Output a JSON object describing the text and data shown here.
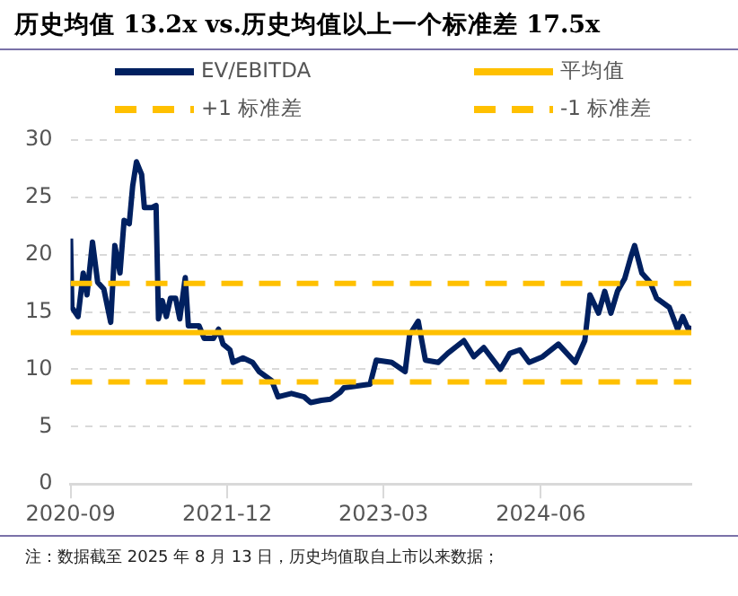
{
  "chart_data": {
    "type": "line",
    "title": "历史均值 13.2x vs.历史均值以上一个标准差 17.5x",
    "annotations": [
      "注：数据截至 2025 年 8 月 13 日，历史均值取自上市以来数据；"
    ],
    "xlim": [
      "2020-09-01",
      "2025-08-13"
    ],
    "xticks": [
      "2020-09",
      "2021-12",
      "2023-03",
      "2024-06"
    ],
    "ylim": [
      0,
      30
    ],
    "yticks": [
      0,
      5,
      10,
      15,
      20,
      25,
      30
    ],
    "grid": "y",
    "legend": "top",
    "marker": "none",
    "series": [
      {
        "name": "EV/EBITDA",
        "color": "#002060",
        "line_style": "solid",
        "x": [
          "2020-09-01",
          "2020-09-05",
          "2020-09-23",
          "2020-10-08",
          "2020-10-19",
          "2020-11-04",
          "2020-11-19",
          "2020-12-07",
          "2020-12-27",
          "2021-01-08",
          "2021-01-23",
          "2021-02-04",
          "2021-02-19",
          "2021-03-01",
          "2021-03-12",
          "2021-03-27",
          "2021-04-04",
          "2021-04-25",
          "2021-05-08",
          "2021-05-15",
          "2021-05-26",
          "2021-06-07",
          "2021-06-19",
          "2021-07-04",
          "2021-07-16",
          "2021-08-01",
          "2021-08-10",
          "2021-09-10",
          "2021-09-25",
          "2021-10-22",
          "2021-11-06",
          "2021-11-19",
          "2021-12-09",
          "2021-12-18",
          "2022-01-16",
          "2022-02-13",
          "2022-03-04",
          "2022-04-10",
          "2022-04-28",
          "2022-06-06",
          "2022-07-13",
          "2022-08-01",
          "2022-09-01",
          "2022-09-28",
          "2022-10-26",
          "2022-11-06",
          "2023-01-21",
          "2023-02-08",
          "2023-03-25",
          "2023-05-03",
          "2023-05-16",
          "2023-06-10",
          "2023-07-01",
          "2023-08-07",
          "2023-09-04",
          "2023-10-21",
          "2023-11-19",
          "2023-12-18",
          "2024-02-04",
          "2024-03-03",
          "2024-04-01",
          "2024-04-28",
          "2024-06-06",
          "2024-07-22",
          "2024-09-09",
          "2024-10-07",
          "2024-10-22",
          "2024-11-16",
          "2024-12-04",
          "2024-12-22",
          "2025-01-10",
          "2025-01-31",
          "2025-02-18",
          "2025-03-01",
          "2025-03-22",
          "2025-04-15",
          "2025-05-04",
          "2025-06-10",
          "2025-07-04",
          "2025-07-19",
          "2025-08-07",
          "2025-08-13"
        ],
        "values": [
          21.4,
          15.4,
          14.6,
          18.4,
          16.5,
          21.1,
          17.6,
          17.0,
          14.1,
          20.8,
          18.4,
          23.0,
          22.7,
          26.0,
          28.1,
          27.0,
          24.1,
          24.1,
          24.3,
          14.4,
          16.0,
          14.6,
          16.2,
          16.2,
          14.4,
          18.0,
          13.8,
          13.8,
          12.7,
          12.7,
          13.5,
          12.2,
          11.7,
          10.6,
          11.0,
          10.6,
          9.8,
          9.0,
          7.6,
          7.9,
          7.6,
          7.1,
          7.3,
          7.4,
          8.0,
          8.4,
          8.7,
          10.8,
          10.6,
          9.8,
          13.0,
          14.2,
          10.8,
          10.6,
          11.4,
          12.5,
          11.1,
          11.9,
          10.0,
          11.4,
          11.7,
          10.6,
          11.1,
          12.2,
          10.6,
          12.5,
          16.5,
          14.9,
          16.8,
          14.9,
          16.8,
          17.9,
          19.8,
          20.8,
          18.4,
          17.6,
          16.2,
          15.4,
          13.5,
          14.6,
          13.3,
          13.8
        ]
      },
      {
        "name": "平均值",
        "color": "#ffc000",
        "line_style": "solid",
        "x": [
          "2020-09-01",
          "2025-08-13"
        ],
        "values": [
          13.2,
          13.2
        ]
      },
      {
        "name": "+1 标准差",
        "color": "#ffc000",
        "line_style": "dashed",
        "x": [
          "2020-09-01",
          "2025-08-13"
        ],
        "values": [
          17.5,
          17.5
        ]
      },
      {
        "name": "-1 标准差",
        "color": "#ffc000",
        "line_style": "dashed",
        "x": [
          "2020-09-01",
          "2025-08-13"
        ],
        "values": [
          8.9,
          8.9
        ]
      }
    ]
  }
}
